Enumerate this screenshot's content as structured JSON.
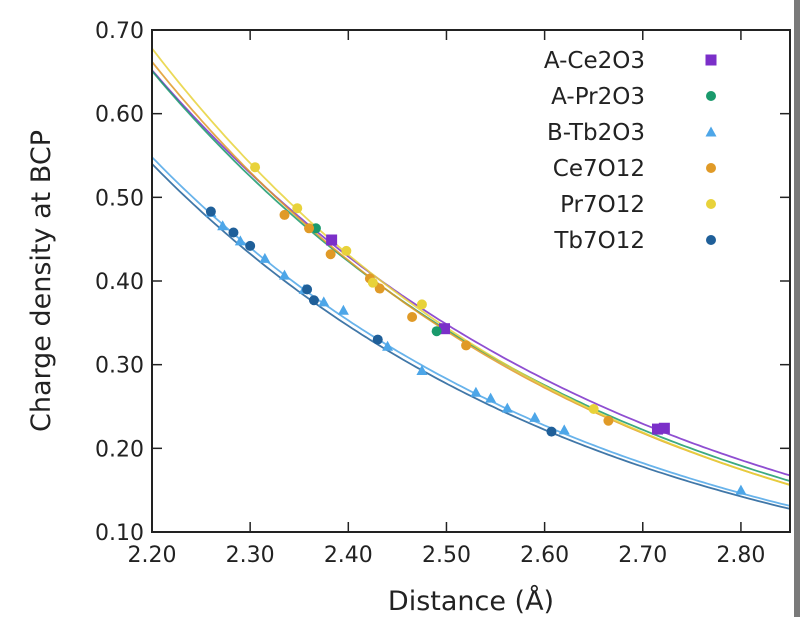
{
  "chart_data": {
    "type": "scatter",
    "xlabel": "Distance (Å)",
    "ylabel": "Charge density at BCP",
    "xlim": [
      2.2,
      2.85
    ],
    "ylim": [
      0.1,
      0.7
    ],
    "x_ticks": [
      "2.20",
      "2.30",
      "2.40",
      "2.50",
      "2.60",
      "2.70",
      "2.80"
    ],
    "y_ticks": [
      "0.10",
      "0.20",
      "0.30",
      "0.40",
      "0.50",
      "0.60",
      "0.70"
    ],
    "legend_position": "top-right",
    "series": [
      {
        "name": "A-Ce2O3",
        "color": "#7b2fc9",
        "marker": "square",
        "points": [
          [
            2.383,
            0.449
          ],
          [
            2.498,
            0.343
          ],
          [
            2.715,
            0.223
          ],
          [
            2.722,
            0.224
          ]
        ],
        "fit": {
          "a": 0.652,
          "b": 2.09
        }
      },
      {
        "name": "A-Pr2O3",
        "color": "#1a9a6c",
        "marker": "circle",
        "points": [
          [
            2.367,
            0.463
          ],
          [
            2.49,
            0.34
          ]
        ],
        "fit": {
          "a": 0.651,
          "b": 2.15
        }
      },
      {
        "name": "B-Tb2O3",
        "color": "#4da6e8",
        "marker": "triangle",
        "points": [
          [
            2.26,
            0.482
          ],
          [
            2.272,
            0.466
          ],
          [
            2.29,
            0.448
          ],
          [
            2.315,
            0.427
          ],
          [
            2.335,
            0.407
          ],
          [
            2.355,
            0.39
          ],
          [
            2.375,
            0.375
          ],
          [
            2.395,
            0.365
          ],
          [
            2.44,
            0.322
          ],
          [
            2.475,
            0.293
          ],
          [
            2.53,
            0.267
          ],
          [
            2.545,
            0.26
          ],
          [
            2.562,
            0.248
          ],
          [
            2.59,
            0.237
          ],
          [
            2.62,
            0.222
          ],
          [
            2.8,
            0.15
          ]
        ],
        "fit": {
          "a": 0.548,
          "b": 2.2
        }
      },
      {
        "name": "Ce7O12",
        "color": "#e09a27",
        "marker": "circle",
        "points": [
          [
            2.335,
            0.479
          ],
          [
            2.36,
            0.463
          ],
          [
            2.382,
            0.432
          ],
          [
            2.422,
            0.403
          ],
          [
            2.432,
            0.391
          ],
          [
            2.465,
            0.357
          ],
          [
            2.52,
            0.323
          ],
          [
            2.665,
            0.233
          ]
        ],
        "fit": {
          "a": 0.662,
          "b": 2.22
        }
      },
      {
        "name": "Pr7O12",
        "color": "#e8d23a",
        "marker": "circle",
        "points": [
          [
            2.305,
            0.536
          ],
          [
            2.348,
            0.487
          ],
          [
            2.398,
            0.436
          ],
          [
            2.425,
            0.398
          ],
          [
            2.475,
            0.372
          ],
          [
            2.65,
            0.247
          ]
        ],
        "fit": {
          "a": 0.678,
          "b": 2.26
        }
      },
      {
        "name": "Tb7O12",
        "color": "#1f5f99",
        "marker": "circle",
        "points": [
          [
            2.26,
            0.483
          ],
          [
            2.283,
            0.458
          ],
          [
            2.3,
            0.442
          ],
          [
            2.358,
            0.39
          ],
          [
            2.365,
            0.377
          ],
          [
            2.43,
            0.33
          ],
          [
            2.607,
            0.22
          ]
        ],
        "fit": {
          "a": 0.54,
          "b": 2.22
        }
      }
    ]
  }
}
